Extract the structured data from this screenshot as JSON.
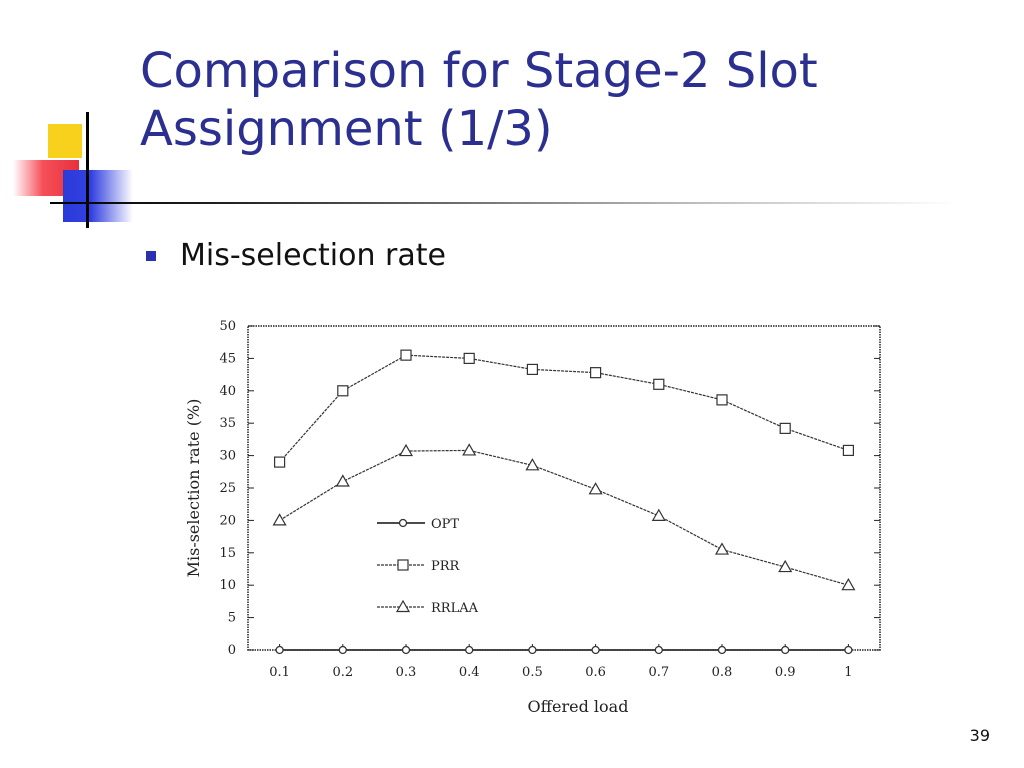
{
  "slide": {
    "title_line1": "Comparison for Stage-2 Slot",
    "title_line2": "Assignment (1/3)",
    "bullet": "Mis-selection rate",
    "page_number": "39"
  },
  "colors": {
    "title": "#2b2f8f",
    "bullet": "#2b2fb0",
    "line": "#333333"
  },
  "chart_data": {
    "type": "line",
    "xlabel": "Offered load",
    "ylabel": "Mis-selection rate (%)",
    "x": [
      0.1,
      0.2,
      0.3,
      0.4,
      0.5,
      0.6,
      0.7,
      0.8,
      0.9,
      1
    ],
    "x_tick_labels": [
      "0.1",
      "0.2",
      "0.3",
      "0.4",
      "0.5",
      "0.6",
      "0.7",
      "0.8",
      "0.9",
      "1"
    ],
    "ylim": [
      0,
      50
    ],
    "y_ticks": [
      0,
      5,
      10,
      15,
      20,
      25,
      30,
      35,
      40,
      45,
      50
    ],
    "legend_position": "center",
    "series": [
      {
        "name": "OPT",
        "marker": "circle",
        "values": [
          0,
          0,
          0,
          0,
          0,
          0,
          0,
          0,
          0,
          0
        ]
      },
      {
        "name": "PRR",
        "marker": "square",
        "values": [
          29,
          40,
          45.5,
          45,
          43.3,
          42.8,
          41,
          38.6,
          34.2,
          30.8
        ]
      },
      {
        "name": "RRLAA",
        "marker": "triangle",
        "values": [
          20,
          26,
          30.7,
          30.8,
          28.5,
          24.8,
          20.7,
          15.5,
          12.8,
          10
        ]
      }
    ]
  }
}
